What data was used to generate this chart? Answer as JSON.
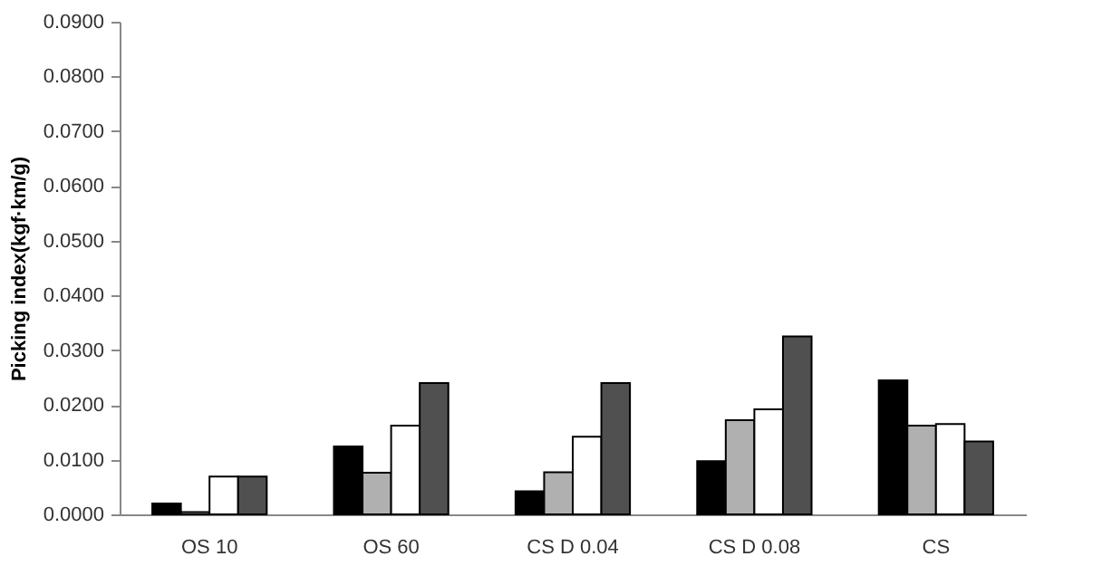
{
  "chart_data": {
    "type": "bar",
    "ylabel": "Picking index(kgf·km/g)",
    "categories": [
      "OS 10",
      "OS 60",
      "CS D 0.04",
      "CS D 0.08",
      "CS"
    ],
    "series": [
      {
        "color": "#000000",
        "values": [
          0.002,
          0.0124,
          0.0042,
          0.0097,
          0.0245
        ]
      },
      {
        "color": "#b0b0b0",
        "values": [
          0.0004,
          0.0076,
          0.0077,
          0.0172,
          0.0162
        ]
      },
      {
        "color": "#ffffff",
        "values": [
          0.0069,
          0.0162,
          0.0142,
          0.0192,
          0.0165
        ]
      },
      {
        "color": "#505050",
        "values": [
          0.0069,
          0.024,
          0.024,
          0.0325,
          0.0133
        ]
      }
    ],
    "ylim": [
      0,
      0.09
    ],
    "yticks": [
      {
        "value": 0,
        "label": "0.0000"
      },
      {
        "value": 0.01,
        "label": "0.0100"
      },
      {
        "value": 0.02,
        "label": "0.0200"
      },
      {
        "value": 0.03,
        "label": "0.0300"
      },
      {
        "value": 0.04,
        "label": "0.0400"
      },
      {
        "value": 0.05,
        "label": "0.0500"
      },
      {
        "value": 0.06,
        "label": "0.0600"
      },
      {
        "value": 0.07,
        "label": "0.0700"
      },
      {
        "value": 0.08,
        "label": "0.0800"
      },
      {
        "value": 0.09,
        "label": "0.0900"
      }
    ],
    "grid": false,
    "legend": false
  }
}
